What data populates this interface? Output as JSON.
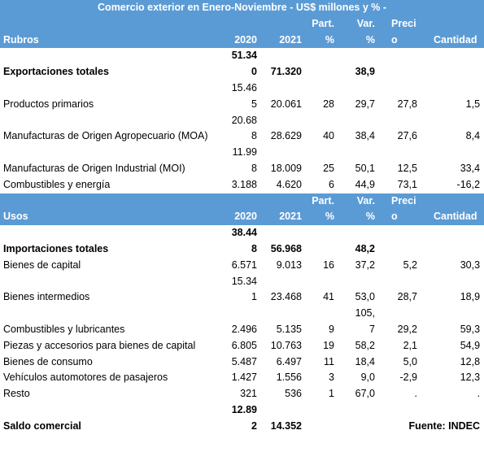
{
  "title": "Comercio exterior en Enero-Noviembre - US$ millones y % -",
  "sections": [
    {
      "header": [
        "Rubros",
        "2020",
        "2021",
        "Part. %",
        "Var. %",
        "Precio",
        "Cantidad"
      ],
      "rows": [
        {
          "cells": [
            "Exportaciones totales",
            "51.340",
            "71.320",
            null,
            "38,9",
            null,
            null
          ],
          "bold": true
        },
        {
          "cells": [
            "Productos primarios",
            "15.465",
            "20.061",
            "28",
            "29,7",
            "27,8",
            "1,5"
          ]
        },
        {
          "cells": [
            "Manufacturas de Origen Agropecuario (MOA)",
            "20.688",
            "28.629",
            "40",
            "38,4",
            "27,6",
            "8,4"
          ]
        },
        {
          "cells": [
            "Manufacturas de Origen Industrial (MOI)",
            "11.998",
            "18.009",
            "25",
            "50,1",
            "12,5",
            "33,4"
          ]
        },
        {
          "cells": [
            "Combustibles y energía",
            "3.188",
            "4.620",
            "6",
            "44,9",
            "73,1",
            "-16,2"
          ]
        }
      ]
    },
    {
      "header": [
        "Usos",
        "2020",
        "2021",
        "Part. %",
        "Var. %",
        "Precio",
        "Cantidad"
      ],
      "rows": [
        {
          "cells": [
            "Importaciones totales",
            "38.448",
            "56.968",
            null,
            "48,2",
            null,
            null
          ],
          "bold": true
        },
        {
          "cells": [
            "Bienes de capital",
            "6.571",
            "9.013",
            "16",
            "37,2",
            "5,2",
            "30,3"
          ]
        },
        {
          "cells": [
            "Bienes intermedios",
            "15.341",
            "23.468",
            "41",
            "53,0",
            "28,7",
            "18,9"
          ]
        },
        {
          "cells": [
            "Combustibles y lubricantes",
            "2.496",
            "5.135",
            "9",
            "105,7",
            "29,2",
            "59,3"
          ]
        },
        {
          "cells": [
            "Piezas y accesorios para bienes de capital",
            "6.805",
            "10.763",
            "19",
            "58,2",
            "2,1",
            "54,9"
          ]
        },
        {
          "cells": [
            "Bienes de consumo",
            "5.487",
            "6.497",
            "11",
            "18,4",
            "5,0",
            "12,8"
          ]
        },
        {
          "cells": [
            "Vehículos automotores de pasajeros",
            "1.427",
            "1.556",
            "3",
            "9,0",
            "-2,9",
            "12,3"
          ]
        },
        {
          "cells": [
            "Resto",
            "321",
            "536",
            "1",
            "67,0",
            ".",
            "."
          ]
        }
      ]
    }
  ],
  "footer": {
    "label": "Saldo comercial",
    "y2020": "12.892",
    "y2021": "14.352",
    "source": "Fuente: INDEC"
  }
}
